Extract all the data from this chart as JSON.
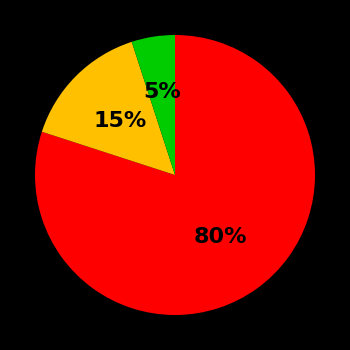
{
  "slices": [
    80,
    15,
    5
  ],
  "colors": [
    "#ff0000",
    "#ffc000",
    "#00cc00"
  ],
  "labels": [
    "80%",
    "15%",
    "5%"
  ],
  "background_color": "#000000",
  "text_color": "#000000",
  "startangle": 90,
  "label_fontsize": 16,
  "label_fontweight": "bold",
  "label_radii": [
    0.55,
    0.55,
    0.6
  ],
  "figsize": [
    3.5,
    3.5
  ],
  "dpi": 100
}
